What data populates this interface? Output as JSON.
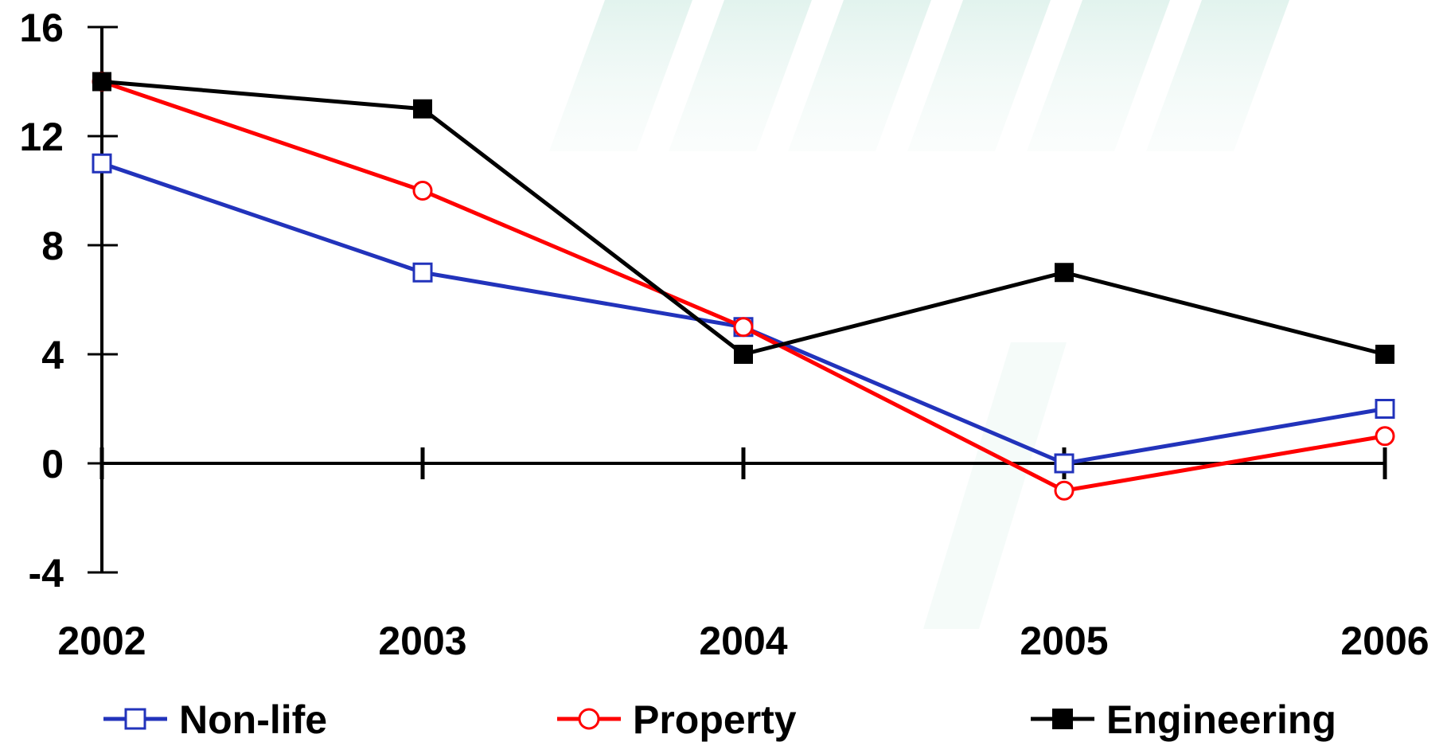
{
  "chart_data": {
    "type": "line",
    "title": "",
    "xlabel": "",
    "ylabel": "",
    "categories": [
      "2002",
      "2003",
      "2004",
      "2005",
      "2006"
    ],
    "ylim": [
      -4,
      16
    ],
    "yticks": [
      16,
      12,
      8,
      4,
      0,
      -4
    ],
    "ytick_labels": [
      "16",
      "12",
      "8",
      "4",
      "0",
      "-4"
    ],
    "grid": false,
    "legend_position": "bottom",
    "series": [
      {
        "name": "Non-life",
        "values": [
          11,
          7,
          5,
          0,
          2
        ],
        "color": "#2233bb",
        "marker": "square-open"
      },
      {
        "name": "Property",
        "values": [
          14,
          10,
          5,
          -1,
          1
        ],
        "color": "#ff0000",
        "marker": "circle-open"
      },
      {
        "name": "Engineering",
        "values": [
          14,
          13,
          4,
          7,
          4
        ],
        "color": "#000000",
        "marker": "square-filled"
      }
    ]
  }
}
